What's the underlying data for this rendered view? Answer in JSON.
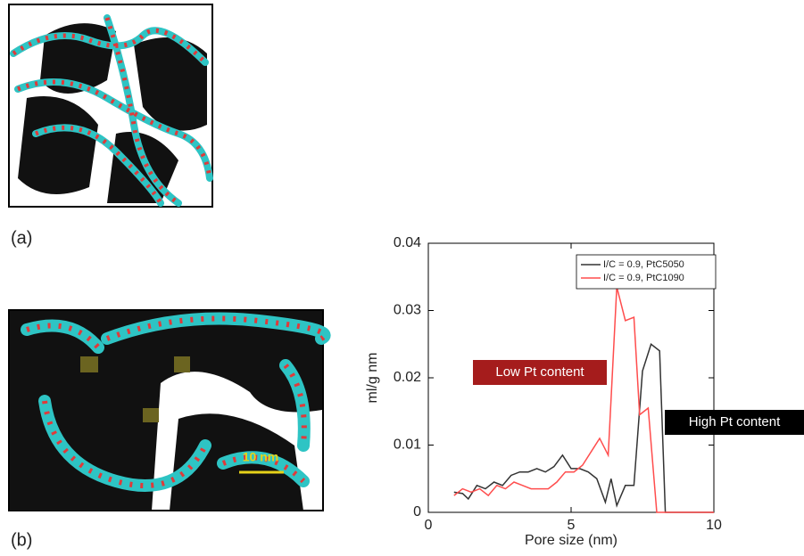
{
  "panels": {
    "a_label": "(a)",
    "b_label": "(b)",
    "scale_label": "10 nm"
  },
  "chart_data": {
    "type": "line",
    "x_label": "Pore size (nm)",
    "y_label": "ml/g nm",
    "xlim": [
      0,
      10
    ],
    "xticks": [
      0,
      5,
      10
    ],
    "ylim": [
      0,
      0.04
    ],
    "yticks": [
      0,
      0.01,
      0.02,
      0.03,
      0.04
    ],
    "legend": "upper right",
    "series": [
      {
        "name": "I/C = 0.9, PtC5050",
        "color": "#333333",
        "x": [
          0.9,
          1.2,
          1.4,
          1.7,
          2.0,
          2.3,
          2.6,
          2.9,
          3.2,
          3.5,
          3.8,
          4.1,
          4.4,
          4.7,
          5.0,
          5.3,
          5.6,
          5.9,
          6.2,
          6.4,
          6.6,
          6.9,
          7.2,
          7.5,
          7.8,
          8.1,
          8.3,
          10
        ],
        "values": [
          0.003,
          0.0028,
          0.002,
          0.004,
          0.0035,
          0.0045,
          0.004,
          0.0055,
          0.006,
          0.006,
          0.0065,
          0.006,
          0.0068,
          0.0085,
          0.0065,
          0.0065,
          0.006,
          0.005,
          0.0015,
          0.005,
          0.001,
          0.004,
          0.004,
          0.021,
          0.025,
          0.024,
          0,
          0
        ]
      },
      {
        "name": "I/C = 0.9, PtC1090",
        "color": "#ff4d4d",
        "x": [
          0.9,
          1.2,
          1.5,
          1.8,
          2.1,
          2.4,
          2.7,
          3.0,
          3.3,
          3.6,
          3.9,
          4.2,
          4.5,
          4.8,
          5.1,
          5.4,
          5.7,
          6.0,
          6.3,
          6.6,
          6.9,
          7.2,
          7.4,
          7.7,
          8.0,
          10
        ],
        "values": [
          0.0025,
          0.0035,
          0.003,
          0.0035,
          0.0025,
          0.004,
          0.0035,
          0.0045,
          0.004,
          0.0035,
          0.0035,
          0.0035,
          0.0045,
          0.006,
          0.006,
          0.007,
          0.009,
          0.011,
          0.0085,
          0.0335,
          0.0285,
          0.029,
          0.0145,
          0.0155,
          0,
          0
        ]
      }
    ],
    "annotations": [
      {
        "text": "Low Pt content",
        "color": "#a51c1c"
      },
      {
        "text": "High Pt content",
        "color": "#000000"
      }
    ]
  }
}
